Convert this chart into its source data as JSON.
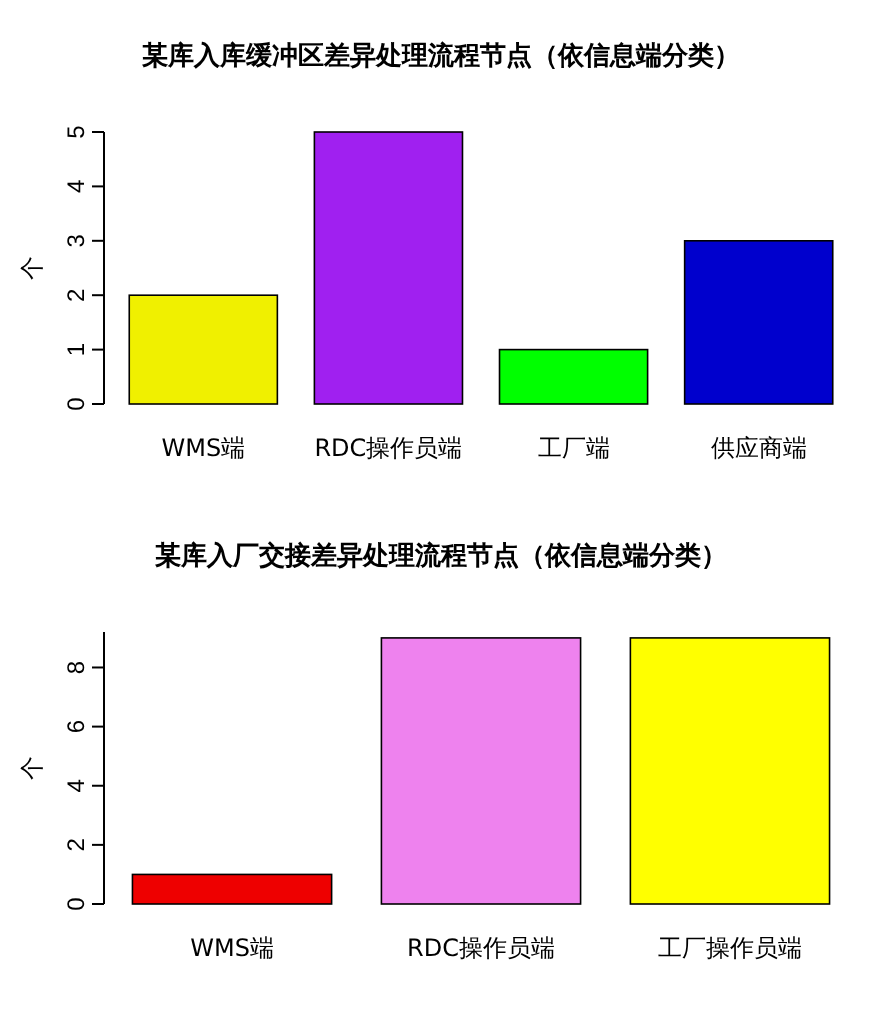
{
  "chart_data": [
    {
      "type": "bar",
      "title": "某库入库缓冲区差异处理流程节点（依信息端分类）",
      "ylabel": "个",
      "categories": [
        "WMS端",
        "RDC操作员端",
        "工厂端",
        "供应商端"
      ],
      "values": [
        2,
        5,
        1,
        3
      ],
      "colors": [
        "#f0f000",
        "#a020f0",
        "#00ff00",
        "#0000cd"
      ],
      "ylim": [
        0,
        5
      ],
      "yticks": [
        0,
        1,
        2,
        3,
        4,
        5
      ],
      "grid": false
    },
    {
      "type": "bar",
      "title": "某库入厂交接差异处理流程节点（依信息端分类）",
      "ylabel": "个",
      "categories": [
        "WMS端",
        "RDC操作员端",
        "工厂操作员端"
      ],
      "values": [
        1,
        9,
        9
      ],
      "colors": [
        "#ee0000",
        "#ee82ee",
        "#ffff00"
      ],
      "ylim": [
        0,
        9.2
      ],
      "yticks": [
        0,
        2,
        4,
        6,
        8
      ],
      "grid": false
    }
  ]
}
